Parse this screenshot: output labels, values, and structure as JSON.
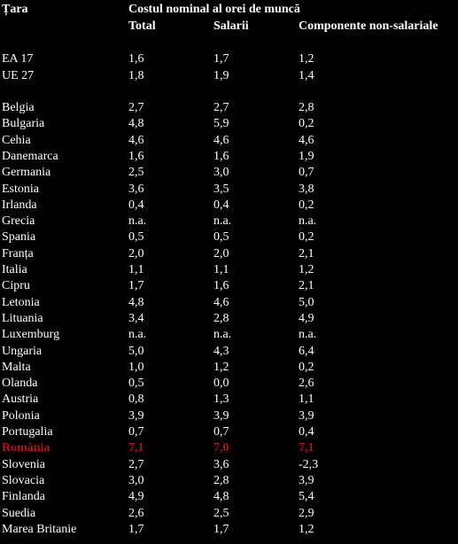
{
  "header": {
    "country_label": "Țara",
    "group_label": "Costul nominal al orei de muncă",
    "columns": [
      "Total",
      "Salarii",
      "Componente non-salariale"
    ]
  },
  "aggregates": [
    {
      "country": "EA 17",
      "total": "1,6",
      "salarii": "1,7",
      "non_salariale": "1,2"
    },
    {
      "country": "UE 27",
      "total": "1,8",
      "salarii": "1,9",
      "non_salariale": "1,4"
    }
  ],
  "countries": [
    {
      "country": "Belgia",
      "total": "2,7",
      "salarii": "2,7",
      "non_salariale": "2,8"
    },
    {
      "country": "Bulgaria",
      "total": "4,8",
      "salarii": "5,9",
      "non_salariale": "0,2"
    },
    {
      "country": "Cehia",
      "total": "4,6",
      "salarii": "4,6",
      "non_salariale": "4,6"
    },
    {
      "country": "Danemarca",
      "total": "1,6",
      "salarii": "1,6",
      "non_salariale": "1,9"
    },
    {
      "country": "Germania",
      "total": "2,5",
      "salarii": "3,0",
      "non_salariale": "0,7"
    },
    {
      "country": "Estonia",
      "total": "3,6",
      "salarii": "3,5",
      "non_salariale": "3,8"
    },
    {
      "country": "Irlanda",
      "total": "0,4",
      "salarii": "0,4",
      "non_salariale": "0,2"
    },
    {
      "country": "Grecia",
      "total": "n.a.",
      "salarii": "n.a.",
      "non_salariale": "n.a."
    },
    {
      "country": "Spania",
      "total": "0,5",
      "salarii": "0,5",
      "non_salariale": "0,2"
    },
    {
      "country": "Franța",
      "total": "2,0",
      "salarii": "2,0",
      "non_salariale": "2,1"
    },
    {
      "country": "Italia",
      "total": "1,1",
      "salarii": "1,1",
      "non_salariale": "1,2"
    },
    {
      "country": "Cipru",
      "total": "1,7",
      "salarii": "1,6",
      "non_salariale": "2,1"
    },
    {
      "country": "Letonia",
      "total": "4,8",
      "salarii": "4,6",
      "non_salariale": "5,0"
    },
    {
      "country": "Lituania",
      "total": "3,4",
      "salarii": "2,8",
      "non_salariale": "4,9"
    },
    {
      "country": "Luxemburg",
      "total": "n.a.",
      "salarii": "n.a.",
      "non_salariale": "n.a."
    },
    {
      "country": "Ungaria",
      "total": "5,0",
      "salarii": "4,3",
      "non_salariale": "6,4"
    },
    {
      "country": "Malta",
      "total": "1,0",
      "salarii": "1,2",
      "non_salariale": "0,2"
    },
    {
      "country": "Olanda",
      "total": "0,5",
      "salarii": "0,0",
      "non_salariale": "2,6"
    },
    {
      "country": "Austria",
      "total": "0,8",
      "salarii": "1,3",
      "non_salariale": "1,1"
    },
    {
      "country": "Polonia",
      "total": "3,9",
      "salarii": "3,9",
      "non_salariale": "3,9"
    },
    {
      "country": "Portugalia",
      "total": "0,7",
      "salarii": "0,7",
      "non_salariale": "0,4"
    },
    {
      "country": "România",
      "total": "7,1",
      "salarii": "7,0",
      "non_salariale": "7,1",
      "highlight": true
    },
    {
      "country": "Slovenia",
      "total": "2,7",
      "salarii": "3,6",
      "non_salariale": "-2,3"
    },
    {
      "country": "Slovacia",
      "total": "3,0",
      "salarii": "2,8",
      "non_salariale": "3,9"
    },
    {
      "country": "Finlanda",
      "total": "4,9",
      "salarii": "4,8",
      "non_salariale": "5,4"
    },
    {
      "country": "Suedia",
      "total": "2,6",
      "salarii": "2,5",
      "non_salariale": "2,9"
    },
    {
      "country": "Marea Britanie",
      "total": "1,7",
      "salarii": "1,7",
      "non_salariale": "1,2"
    }
  ],
  "colors": {
    "background": "#000000",
    "text": "#ffffff",
    "highlight": "#b31217"
  }
}
